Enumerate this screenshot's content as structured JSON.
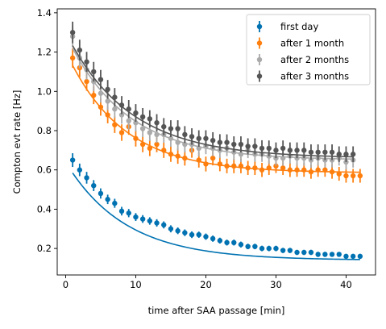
{
  "chart_data": {
    "type": "scatter",
    "xlabel": "time after SAA passage [min]",
    "ylabel": "Compton evt rate [Hz]",
    "xlim": [
      -1.2,
      44.2
    ],
    "ylim": [
      0.065,
      1.42
    ],
    "xticks": [
      0,
      10,
      20,
      30,
      40
    ],
    "yticks": [
      0.2,
      0.4,
      0.6,
      0.8,
      1.0,
      1.2,
      1.4
    ],
    "xtick_labels": [
      "0",
      "10",
      "20",
      "30",
      "40"
    ],
    "ytick_labels": [
      "0.2",
      "0.4",
      "0.6",
      "0.8",
      "1.0",
      "1.2",
      "1.4"
    ],
    "legend_position": "top-right",
    "series": [
      {
        "name": "first day",
        "color": "#0072B2",
        "x": [
          1,
          2,
          3,
          4,
          5,
          6,
          7,
          8,
          9,
          10,
          11,
          12,
          13,
          14,
          15,
          16,
          17,
          18,
          19,
          20,
          21,
          22,
          23,
          24,
          25,
          26,
          27,
          28,
          29,
          30,
          31,
          32,
          33,
          34,
          35,
          36,
          37,
          38,
          39,
          40,
          41,
          42
        ],
        "y": [
          0.65,
          0.6,
          0.56,
          0.52,
          0.48,
          0.45,
          0.43,
          0.39,
          0.38,
          0.36,
          0.35,
          0.34,
          0.33,
          0.32,
          0.3,
          0.29,
          0.28,
          0.27,
          0.27,
          0.26,
          0.25,
          0.24,
          0.23,
          0.23,
          0.22,
          0.21,
          0.21,
          0.2,
          0.2,
          0.2,
          0.19,
          0.19,
          0.18,
          0.18,
          0.18,
          0.17,
          0.17,
          0.17,
          0.17,
          0.16,
          0.16,
          0.16
        ],
        "yerr": [
          0.035,
          0.032,
          0.03,
          0.028,
          0.026,
          0.024,
          0.023,
          0.022,
          0.021,
          0.02,
          0.02,
          0.019,
          0.019,
          0.018,
          0.018,
          0.017,
          0.017,
          0.017,
          0.016,
          0.016,
          0.016,
          0.015,
          0.015,
          0.015,
          0.015,
          0.014,
          0.014,
          0.014,
          0.014,
          0.014,
          0.013,
          0.013,
          0.013,
          0.013,
          0.013,
          0.013,
          0.013,
          0.012,
          0.012,
          0.012,
          0.012,
          0.012
        ],
        "fit": {
          "a": 0.5,
          "tau": 8.5,
          "c": 0.14
        }
      },
      {
        "name": "after 1 month",
        "color": "#FF7F0E",
        "x": [
          1,
          2,
          3,
          4,
          5,
          6,
          7,
          8,
          9,
          10,
          11,
          12,
          13,
          14,
          15,
          16,
          17,
          18,
          19,
          20,
          21,
          22,
          23,
          24,
          25,
          26,
          27,
          28,
          29,
          30,
          31,
          32,
          33,
          34,
          35,
          36,
          37,
          38,
          39,
          40,
          41,
          42
        ],
        "y": [
          1.17,
          1.12,
          1.05,
          0.98,
          0.92,
          0.88,
          0.83,
          0.79,
          0.82,
          0.76,
          0.73,
          0.71,
          0.73,
          0.7,
          0.68,
          0.67,
          0.66,
          0.7,
          0.65,
          0.63,
          0.66,
          0.63,
          0.62,
          0.62,
          0.62,
          0.61,
          0.61,
          0.6,
          0.61,
          0.62,
          0.61,
          0.6,
          0.6,
          0.6,
          0.59,
          0.6,
          0.6,
          0.59,
          0.58,
          0.57,
          0.57,
          0.57
        ],
        "yerr": [
          0.05,
          0.048,
          0.047,
          0.045,
          0.044,
          0.043,
          0.042,
          0.042,
          0.041,
          0.041,
          0.04,
          0.04,
          0.04,
          0.039,
          0.039,
          0.039,
          0.038,
          0.038,
          0.038,
          0.038,
          0.037,
          0.037,
          0.037,
          0.037,
          0.037,
          0.036,
          0.036,
          0.036,
          0.036,
          0.036,
          0.036,
          0.036,
          0.035,
          0.035,
          0.035,
          0.035,
          0.035,
          0.035,
          0.035,
          0.035,
          0.035,
          0.035
        ],
        "fit": {
          "a": 0.62,
          "tau": 8.0,
          "c": 0.585
        }
      },
      {
        "name": "after 2 months",
        "color": "#AAAAAA",
        "x": [
          1,
          2,
          3,
          4,
          5,
          6,
          7,
          8,
          9,
          10,
          11,
          12,
          13,
          14,
          15,
          16,
          17,
          18,
          19,
          20,
          21,
          22,
          23,
          24,
          25,
          26,
          27,
          28,
          29,
          30,
          31,
          32,
          33,
          34,
          35,
          36,
          37,
          38,
          39,
          40,
          41
        ],
        "y": [
          1.28,
          1.17,
          1.11,
          1.05,
          0.99,
          0.95,
          0.91,
          0.88,
          0.85,
          0.84,
          0.81,
          0.79,
          0.78,
          0.78,
          0.76,
          0.74,
          0.73,
          0.73,
          0.71,
          0.72,
          0.71,
          0.7,
          0.71,
          0.69,
          0.68,
          0.7,
          0.68,
          0.68,
          0.67,
          0.66,
          0.66,
          0.67,
          0.66,
          0.66,
          0.65,
          0.66,
          0.65,
          0.65,
          0.66,
          0.64,
          0.65
        ],
        "yerr": [
          0.055,
          0.052,
          0.05,
          0.049,
          0.047,
          0.046,
          0.045,
          0.045,
          0.044,
          0.044,
          0.043,
          0.043,
          0.042,
          0.042,
          0.042,
          0.041,
          0.041,
          0.041,
          0.041,
          0.04,
          0.04,
          0.04,
          0.04,
          0.04,
          0.04,
          0.04,
          0.039,
          0.039,
          0.039,
          0.039,
          0.039,
          0.039,
          0.039,
          0.039,
          0.039,
          0.039,
          0.038,
          0.038,
          0.038,
          0.038,
          0.038
        ],
        "fit": {
          "a": 0.64,
          "tau": 8.5,
          "c": 0.65
        }
      },
      {
        "name": "after 3 months",
        "color": "#555555",
        "x": [
          1,
          2,
          3,
          4,
          5,
          6,
          7,
          8,
          9,
          10,
          11,
          12,
          13,
          14,
          15,
          16,
          17,
          18,
          19,
          20,
          21,
          22,
          23,
          24,
          25,
          26,
          27,
          28,
          29,
          30,
          31,
          32,
          33,
          34,
          35,
          36,
          37,
          38,
          39,
          40,
          41
        ],
        "y": [
          1.3,
          1.21,
          1.15,
          1.1,
          1.06,
          1.01,
          0.97,
          0.93,
          0.91,
          0.89,
          0.87,
          0.86,
          0.84,
          0.82,
          0.81,
          0.81,
          0.78,
          0.77,
          0.76,
          0.76,
          0.75,
          0.74,
          0.74,
          0.73,
          0.73,
          0.72,
          0.72,
          0.71,
          0.71,
          0.7,
          0.71,
          0.7,
          0.7,
          0.7,
          0.69,
          0.69,
          0.69,
          0.69,
          0.68,
          0.68,
          0.68
        ],
        "yerr": [
          0.055,
          0.053,
          0.051,
          0.05,
          0.049,
          0.048,
          0.047,
          0.046,
          0.046,
          0.045,
          0.045,
          0.044,
          0.044,
          0.044,
          0.043,
          0.043,
          0.043,
          0.042,
          0.042,
          0.042,
          0.042,
          0.042,
          0.041,
          0.041,
          0.041,
          0.041,
          0.041,
          0.041,
          0.04,
          0.04,
          0.04,
          0.04,
          0.04,
          0.04,
          0.04,
          0.04,
          0.04,
          0.04,
          0.04,
          0.04,
          0.04
        ],
        "fit": {
          "a": 0.64,
          "tau": 9.0,
          "c": 0.66
        }
      }
    ]
  }
}
